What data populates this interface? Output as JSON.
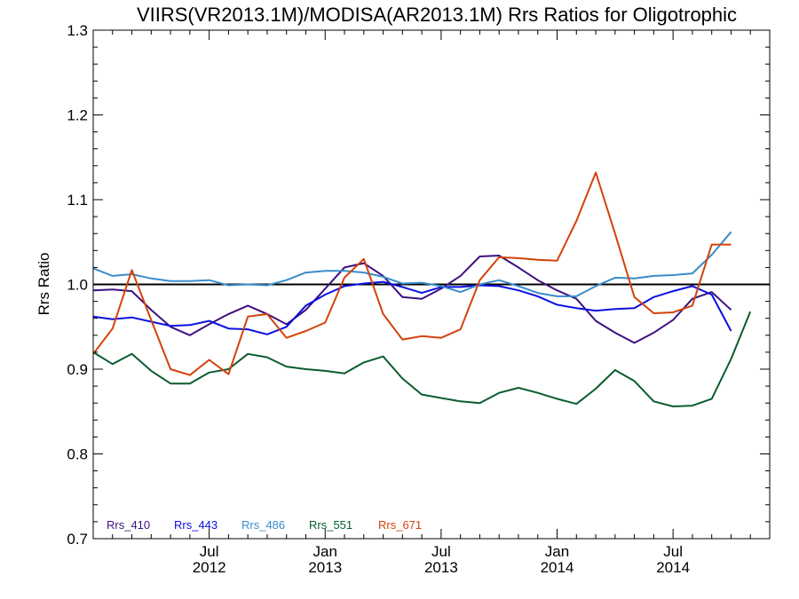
{
  "chart_data": {
    "type": "line",
    "title": "VIIRS(VR2013.1M)/MODISA(AR2013.1M)  Rrs Ratios for Oligotrophic",
    "xlabel": "",
    "ylabel": "Rrs Ratio",
    "x_start": "2012-01",
    "x_end": "2014-12",
    "ylim": [
      0.7,
      1.3
    ],
    "yticks": [
      "0.7",
      "0.8",
      "0.9",
      "1.0",
      "1.1",
      "1.2",
      "1.3"
    ],
    "xticks": [
      {
        "month": "Jul",
        "year": "2012",
        "date": "2012-07"
      },
      {
        "month": "Jan",
        "year": "2013",
        "date": "2013-01"
      },
      {
        "month": "Jul",
        "year": "2013",
        "date": "2013-07"
      },
      {
        "month": "Jan",
        "year": "2014",
        "date": "2014-01"
      },
      {
        "month": "Jul",
        "year": "2014",
        "date": "2014-07"
      }
    ],
    "reference_line": 1.0,
    "legend_position": "bottom-left",
    "series": [
      {
        "name": "Rrs_410",
        "color": "#3d1180",
        "points": [
          [
            "2012-01",
            0.993
          ],
          [
            "2012-02",
            0.994
          ],
          [
            "2012-03",
            0.992
          ],
          [
            "2012-04",
            0.97
          ],
          [
            "2012-05",
            0.95
          ],
          [
            "2012-06",
            0.94
          ],
          [
            "2012-07",
            0.953
          ],
          [
            "2012-08",
            0.965
          ],
          [
            "2012-09",
            0.975
          ],
          [
            "2012-10",
            0.965
          ],
          [
            "2012-11",
            0.953
          ],
          [
            "2012-12",
            0.97
          ],
          [
            "2013-01",
            0.995
          ],
          [
            "2013-02",
            1.02
          ],
          [
            "2013-03",
            1.025
          ],
          [
            "2013-04",
            1.01
          ],
          [
            "2013-05",
            0.985
          ],
          [
            "2013-06",
            0.983
          ],
          [
            "2013-07",
            0.995
          ],
          [
            "2013-08",
            1.01
          ],
          [
            "2013-09",
            1.033
          ],
          [
            "2013-10",
            1.034
          ],
          [
            "2013-11",
            1.02
          ],
          [
            "2013-12",
            1.005
          ],
          [
            "2014-01",
            0.993
          ],
          [
            "2014-02",
            0.983
          ],
          [
            "2014-03",
            0.957
          ],
          [
            "2014-04",
            0.943
          ],
          [
            "2014-05",
            0.931
          ],
          [
            "2014-06",
            0.943
          ],
          [
            "2014-07",
            0.958
          ],
          [
            "2014-08",
            0.983
          ],
          [
            "2014-09",
            0.991
          ],
          [
            "2014-10",
            0.97
          ]
        ]
      },
      {
        "name": "Rrs_443",
        "color": "#0a10e0",
        "points": [
          [
            "2012-01",
            0.962
          ],
          [
            "2012-02",
            0.959
          ],
          [
            "2012-03",
            0.961
          ],
          [
            "2012-04",
            0.956
          ],
          [
            "2012-05",
            0.951
          ],
          [
            "2012-06",
            0.952
          ],
          [
            "2012-07",
            0.957
          ],
          [
            "2012-08",
            0.948
          ],
          [
            "2012-09",
            0.947
          ],
          [
            "2012-10",
            0.941
          ],
          [
            "2012-11",
            0.95
          ],
          [
            "2012-12",
            0.975
          ],
          [
            "2013-01",
            0.988
          ],
          [
            "2013-02",
            0.998
          ],
          [
            "2013-03",
            1.001
          ],
          [
            "2013-04",
            1.003
          ],
          [
            "2013-05",
            0.997
          ],
          [
            "2013-06",
            0.99
          ],
          [
            "2013-07",
            0.997
          ],
          [
            "2013-08",
            0.997
          ],
          [
            "2013-09",
            0.999
          ],
          [
            "2013-10",
            0.998
          ],
          [
            "2013-11",
            0.993
          ],
          [
            "2013-12",
            0.986
          ],
          [
            "2014-01",
            0.976
          ],
          [
            "2014-02",
            0.972
          ],
          [
            "2014-03",
            0.969
          ],
          [
            "2014-04",
            0.971
          ],
          [
            "2014-05",
            0.972
          ],
          [
            "2014-06",
            0.985
          ],
          [
            "2014-07",
            0.992
          ],
          [
            "2014-08",
            0.998
          ],
          [
            "2014-09",
            0.988
          ],
          [
            "2014-10",
            0.945
          ]
        ]
      },
      {
        "name": "Rrs_486",
        "color": "#3a8ccb",
        "points": [
          [
            "2012-01",
            1.019
          ],
          [
            "2012-02",
            1.01
          ],
          [
            "2012-03",
            1.012
          ],
          [
            "2012-04",
            1.007
          ],
          [
            "2012-05",
            1.004
          ],
          [
            "2012-06",
            1.004
          ],
          [
            "2012-07",
            1.005
          ],
          [
            "2012-08",
            0.999
          ],
          [
            "2012-09",
            1.0
          ],
          [
            "2012-10",
            0.999
          ],
          [
            "2012-11",
            1.005
          ],
          [
            "2012-12",
            1.014
          ],
          [
            "2013-01",
            1.016
          ],
          [
            "2013-02",
            1.016
          ],
          [
            "2013-03",
            1.014
          ],
          [
            "2013-04",
            1.009
          ],
          [
            "2013-05",
            1.001
          ],
          [
            "2013-06",
            1.002
          ],
          [
            "2013-07",
            0.998
          ],
          [
            "2013-08",
            0.991
          ],
          [
            "2013-09",
            1.0
          ],
          [
            "2013-10",
            1.005
          ],
          [
            "2013-11",
            0.998
          ],
          [
            "2013-12",
            0.99
          ],
          [
            "2014-01",
            0.986
          ],
          [
            "2014-02",
            0.986
          ],
          [
            "2014-03",
            0.998
          ],
          [
            "2014-04",
            1.008
          ],
          [
            "2014-05",
            1.007
          ],
          [
            "2014-06",
            1.01
          ],
          [
            "2014-07",
            1.011
          ],
          [
            "2014-08",
            1.013
          ],
          [
            "2014-09",
            1.035
          ],
          [
            "2014-10",
            1.062
          ]
        ]
      },
      {
        "name": "Rrs_551",
        "color": "#0a5c2e",
        "points": [
          [
            "2012-01",
            0.92
          ],
          [
            "2012-02",
            0.906
          ],
          [
            "2012-03",
            0.918
          ],
          [
            "2012-04",
            0.898
          ],
          [
            "2012-05",
            0.883
          ],
          [
            "2012-06",
            0.883
          ],
          [
            "2012-07",
            0.896
          ],
          [
            "2012-08",
            0.9
          ],
          [
            "2012-09",
            0.918
          ],
          [
            "2012-10",
            0.914
          ],
          [
            "2012-11",
            0.903
          ],
          [
            "2012-12",
            0.9
          ],
          [
            "2013-01",
            0.898
          ],
          [
            "2013-02",
            0.895
          ],
          [
            "2013-03",
            0.908
          ],
          [
            "2013-04",
            0.915
          ],
          [
            "2013-05",
            0.889
          ],
          [
            "2013-06",
            0.87
          ],
          [
            "2013-07",
            0.866
          ],
          [
            "2013-08",
            0.862
          ],
          [
            "2013-09",
            0.86
          ],
          [
            "2013-10",
            0.872
          ],
          [
            "2013-11",
            0.878
          ],
          [
            "2013-12",
            0.872
          ],
          [
            "2014-01",
            0.865
          ],
          [
            "2014-02",
            0.859
          ],
          [
            "2014-03",
            0.877
          ],
          [
            "2014-04",
            0.899
          ],
          [
            "2014-05",
            0.886
          ],
          [
            "2014-06",
            0.862
          ],
          [
            "2014-07",
            0.856
          ],
          [
            "2014-08",
            0.857
          ],
          [
            "2014-09",
            0.865
          ],
          [
            "2014-10",
            0.912
          ],
          [
            "2014-11",
            0.968
          ]
        ]
      },
      {
        "name": "Rrs_671",
        "color": "#d4420a",
        "points": [
          [
            "2012-01",
            0.918
          ],
          [
            "2012-02",
            0.948
          ],
          [
            "2012-03",
            1.017
          ],
          [
            "2012-04",
            0.958
          ],
          [
            "2012-05",
            0.9
          ],
          [
            "2012-06",
            0.893
          ],
          [
            "2012-07",
            0.911
          ],
          [
            "2012-08",
            0.894
          ],
          [
            "2012-09",
            0.962
          ],
          [
            "2012-10",
            0.965
          ],
          [
            "2012-11",
            0.937
          ],
          [
            "2012-12",
            0.945
          ],
          [
            "2013-01",
            0.955
          ],
          [
            "2013-02",
            1.008
          ],
          [
            "2013-03",
            1.03
          ],
          [
            "2013-04",
            0.965
          ],
          [
            "2013-05",
            0.935
          ],
          [
            "2013-06",
            0.939
          ],
          [
            "2013-07",
            0.937
          ],
          [
            "2013-08",
            0.947
          ],
          [
            "2013-09",
            1.005
          ],
          [
            "2013-10",
            1.032
          ],
          [
            "2013-11",
            1.031
          ],
          [
            "2013-12",
            1.029
          ],
          [
            "2014-01",
            1.028
          ],
          [
            "2014-02",
            1.075
          ],
          [
            "2014-03",
            1.132
          ],
          [
            "2014-04",
            1.06
          ],
          [
            "2014-05",
            0.985
          ],
          [
            "2014-06",
            0.966
          ],
          [
            "2014-07",
            0.967
          ],
          [
            "2014-08",
            0.975
          ],
          [
            "2014-09",
            1.047
          ],
          [
            "2014-10",
            1.047
          ]
        ]
      }
    ]
  }
}
